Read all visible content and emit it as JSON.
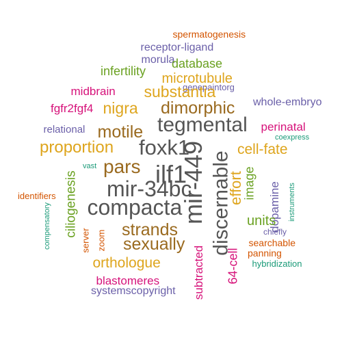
{
  "colors": {
    "orange": "#d35400",
    "purple": "#6a5fa8",
    "green": "#6aa121",
    "magenta": "#d6127a",
    "gold": "#dea51d",
    "brown": "#9a6a1f",
    "gray": "#555555",
    "teal": "#1a9a78"
  },
  "words": [
    {
      "text": "spermatogenesis",
      "color": "orange"
    },
    {
      "text": "receptor-ligand",
      "color": "purple"
    },
    {
      "text": "morula",
      "color": "purple"
    },
    {
      "text": "database",
      "color": "green"
    },
    {
      "text": "infertility",
      "color": "green"
    },
    {
      "text": "microtubule",
      "color": "gold"
    },
    {
      "text": "genepaintorg",
      "color": "purple"
    },
    {
      "text": "midbrain",
      "color": "magenta"
    },
    {
      "text": "substantia",
      "color": "gold"
    },
    {
      "text": "whole-embryo",
      "color": "purple"
    },
    {
      "text": "fgfr2fgf4",
      "color": "magenta"
    },
    {
      "text": "nigra",
      "color": "gold"
    },
    {
      "text": "dimorphic",
      "color": "brown"
    },
    {
      "text": "relational",
      "color": "purple"
    },
    {
      "text": "motile",
      "color": "brown"
    },
    {
      "text": "tegmental",
      "color": "gray"
    },
    {
      "text": "perinatal",
      "color": "magenta"
    },
    {
      "text": "coexpress",
      "color": "teal"
    },
    {
      "text": "proportion",
      "color": "gold"
    },
    {
      "text": "foxk1",
      "color": "gray"
    },
    {
      "text": "cell-fate",
      "color": "gold"
    },
    {
      "text": "pars",
      "color": "brown"
    },
    {
      "text": "ilf1",
      "color": "gray"
    },
    {
      "text": "vast",
      "color": "teal"
    },
    {
      "text": "mir-34bc",
      "color": "gray"
    },
    {
      "text": "mir-449",
      "color": "gray"
    },
    {
      "text": "discernable",
      "color": "gray"
    },
    {
      "text": "effort",
      "color": "gold"
    },
    {
      "text": "image",
      "color": "green"
    },
    {
      "text": "ciliogenesis",
      "color": "green"
    },
    {
      "text": "identifiers",
      "color": "orange"
    },
    {
      "text": "compacta",
      "color": "gray"
    },
    {
      "text": "dopamine",
      "color": "purple"
    },
    {
      "text": "instruments",
      "color": "teal"
    },
    {
      "text": "units",
      "color": "green"
    },
    {
      "text": "strands",
      "color": "brown"
    },
    {
      "text": "compensatory",
      "color": "teal"
    },
    {
      "text": "server",
      "color": "orange"
    },
    {
      "text": "zoom",
      "color": "orange"
    },
    {
      "text": "chiefly",
      "color": "purple"
    },
    {
      "text": "sexually",
      "color": "brown"
    },
    {
      "text": "searchable",
      "color": "orange"
    },
    {
      "text": "panning",
      "color": "orange"
    },
    {
      "text": "orthologue",
      "color": "gold"
    },
    {
      "text": "64-cell",
      "color": "magenta"
    },
    {
      "text": "hybridization",
      "color": "teal"
    },
    {
      "text": "subtracted",
      "color": "magenta"
    },
    {
      "text": "blastomeres",
      "color": "magenta"
    },
    {
      "text": "systemscopyright",
      "color": "purple"
    }
  ]
}
